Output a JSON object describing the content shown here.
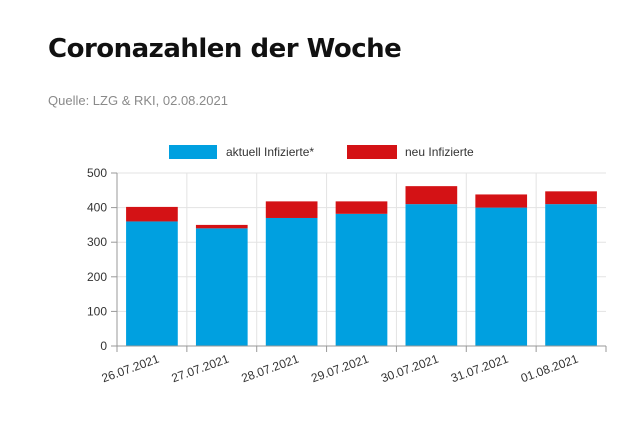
{
  "page": {
    "title": "Coronazahlen der Woche",
    "source": "Quelle: LZG & RKI, 02.08.2021"
  },
  "colors": {
    "aktuell": "#00a0e0",
    "neu": "#d41215"
  },
  "chart_data": {
    "type": "bar",
    "stacked": true,
    "categories": [
      "26.07.2021",
      "27.07.2021",
      "28.07.2021",
      "29.07.2021",
      "30.07.2021",
      "31.07.2021",
      "01.08.2021"
    ],
    "series": [
      {
        "name": "aktuell Infizierte*",
        "values": [
          360,
          340,
          370,
          382,
          410,
          400,
          410
        ]
      },
      {
        "name": "neu Infizierte",
        "values": [
          42,
          10,
          48,
          36,
          52,
          38,
          37
        ]
      }
    ],
    "yticks": [
      0,
      100,
      200,
      300,
      400,
      500
    ],
    "ylim": [
      0,
      500
    ],
    "grid": true,
    "legend_position": "top"
  }
}
